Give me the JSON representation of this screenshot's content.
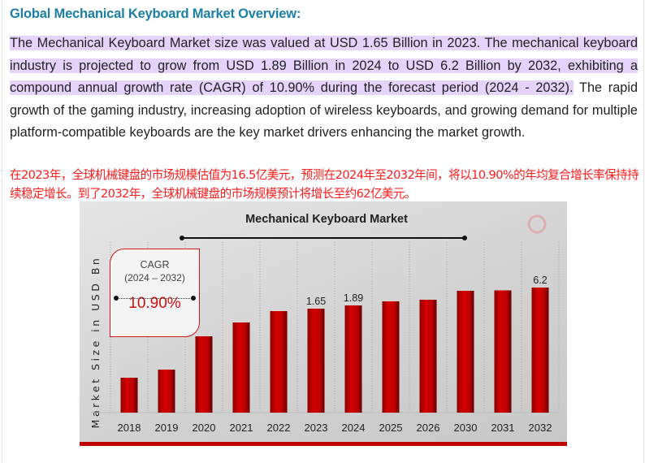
{
  "heading": "Global Mechanical Keyboard Market Overview:",
  "paragraph": {
    "highlighted": "The Mechanical Keyboard Market size was valued at USD 1.65 Billion in 2023. The mechanical keyboard industry is projected to grow from USD 1.89 Billion in 2024 to USD 6.2 Billion by 2032, exhibiting a compound annual growth rate (CAGR) of 10.90% during the forecast period (2024 - 2032).",
    "rest": " The rapid growth of the gaming industry, increasing adoption of wireless keyboards, and growing demand for multiple platform-compatible keyboards are the key market drivers enhancing the market growth."
  },
  "translation_note": "在2023年，全球机械键盘的市场规模估值为16.5亿美元，预测在2024年至2032年间，将以10.90%的年均复合增长率保持持续稳定增长。到了2032年，全球机械键盘的市场规模预计将增长至约62亿美元。",
  "colors": {
    "heading": "#1b7fa6",
    "highlight": "#e6d3fb",
    "note": "#ff1a1a",
    "bar": "#cc0000"
  },
  "chart_data": {
    "type": "bar",
    "title": "Mechanical Keyboard Market",
    "ylabel": "Market Size in USD Bn",
    "xlabel": "",
    "categories": [
      "2018",
      "2019",
      "2020",
      "2021",
      "2022",
      "2023",
      "2024",
      "2025",
      "2026",
      "2030",
      "2031",
      "2032"
    ],
    "values": [
      0.55,
      0.68,
      1.2,
      1.43,
      1.6,
      1.65,
      1.89,
      2.3,
      2.6,
      4.5,
      5.4,
      6.2
    ],
    "data_labels": {
      "2023": "1.65",
      "2024": "1.89",
      "2032": "6.2"
    },
    "grid": "vertical dotted",
    "cagr_box": {
      "label": "CAGR",
      "period": "(2024 – 2032)",
      "value": "10.90%"
    },
    "logo_icon": "chart-magnifier-logo"
  }
}
